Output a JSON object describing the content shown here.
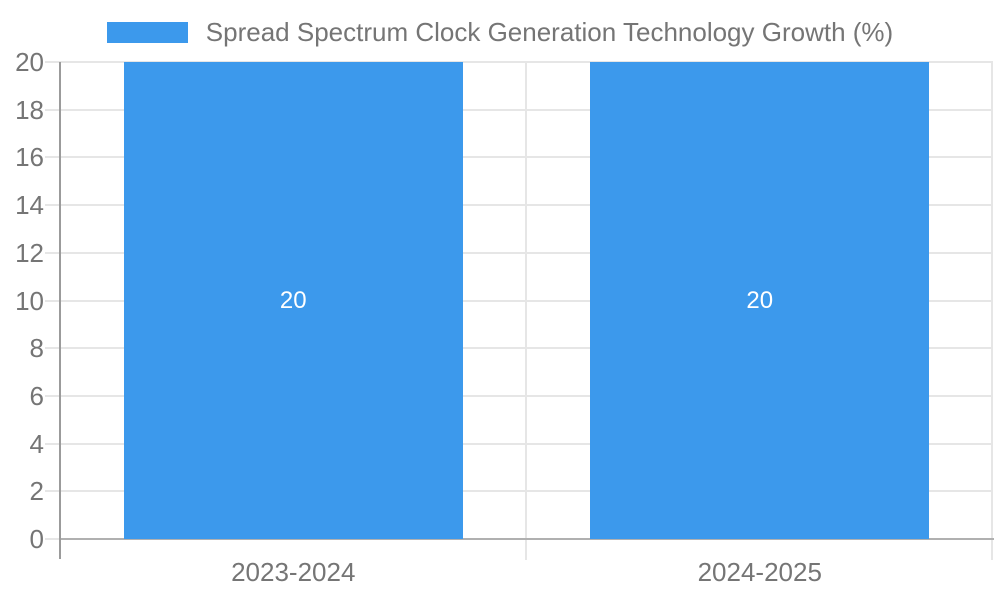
{
  "chart_data": {
    "type": "bar",
    "title": "Spread Spectrum Clock Generation Technology Growth (%)",
    "legend_label": "Spread Spectrum Clock Generation Technology Growth (%)",
    "legend_position": "top",
    "categories": [
      "2023-2024",
      "2024-2025"
    ],
    "series": [
      {
        "name": "Spread Spectrum Clock Generation Technology Growth (%)",
        "values": [
          20,
          20
        ]
      }
    ],
    "bar_value_labels": [
      "20",
      "20"
    ],
    "xlabel": "",
    "ylabel": "",
    "ylim": [
      0,
      20
    ],
    "ytick_step": 2,
    "yticks": [
      0,
      2,
      4,
      6,
      8,
      10,
      12,
      14,
      16,
      18,
      20
    ],
    "grid": true,
    "colors": {
      "bar": "#3C99EC",
      "grid": "#E6E6E6",
      "axis": "#9B9B9B",
      "baseline": "#B0B0B0",
      "label_text": "#757575",
      "bar_label": "#FFFFFF",
      "background": "#FFFFFF"
    }
  }
}
